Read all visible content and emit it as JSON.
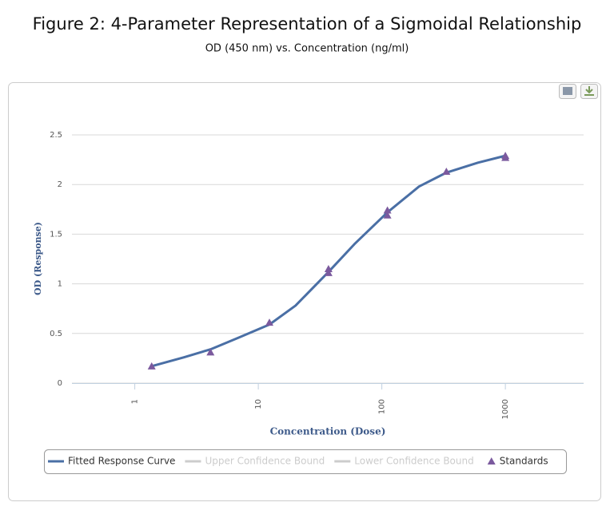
{
  "chart_data": {
    "type": "line",
    "title": "Figure 2: 4-Parameter Representation of a Sigmoidal Relationship",
    "subtitle": "OD (450 nm) vs. Concentration (ng/ml)",
    "x_label": "Concentration (Dose)",
    "y_label": "OD (Response)",
    "x_scale": "log",
    "xlim": [
      0.31,
      4300
    ],
    "xticks": [
      1,
      10,
      100,
      1000
    ],
    "ylim": [
      0,
      2.5
    ],
    "yticks": [
      0,
      0.5,
      1,
      1.5,
      2,
      2.5
    ],
    "grid": true,
    "legend": "bottom",
    "series": [
      {
        "name": "Fitted Response Curve",
        "color": "#4a6fa5",
        "marker": "line",
        "x": [
          1.37,
          2.5,
          4.1,
          7,
          12.3,
          20,
          37,
          60,
          111,
          200,
          333,
          600,
          1000
        ],
        "values": [
          0.17,
          0.26,
          0.34,
          0.46,
          0.59,
          0.78,
          1.12,
          1.4,
          1.72,
          1.98,
          2.12,
          2.22,
          2.29
        ]
      },
      {
        "name": "Upper Confidence Bound",
        "color": "#cccccc",
        "marker": "line",
        "visible": false
      },
      {
        "name": "Lower Confidence Bound",
        "color": "#cccccc",
        "marker": "line",
        "visible": false
      },
      {
        "name": "Standards",
        "color": "#7b5a9e",
        "marker": "triangle",
        "x": [
          1.37,
          4.1,
          12.3,
          37,
          37,
          111,
          111,
          333,
          1000,
          1000
        ],
        "values": [
          0.17,
          0.31,
          0.61,
          1.15,
          1.11,
          1.74,
          1.69,
          2.13,
          2.29,
          2.27
        ]
      }
    ]
  }
}
